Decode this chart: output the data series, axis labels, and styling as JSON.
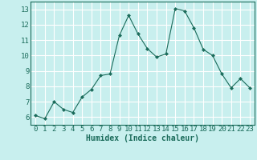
{
  "x": [
    0,
    1,
    2,
    3,
    4,
    5,
    6,
    7,
    8,
    9,
    10,
    11,
    12,
    13,
    14,
    15,
    16,
    17,
    18,
    19,
    20,
    21,
    22,
    23
  ],
  "y": [
    6.1,
    5.9,
    7.0,
    6.5,
    6.3,
    7.3,
    7.8,
    8.7,
    8.8,
    11.3,
    12.6,
    11.4,
    10.45,
    9.9,
    10.1,
    13.05,
    12.9,
    11.8,
    10.4,
    10.0,
    8.8,
    7.9,
    8.5,
    7.9
  ],
  "line_color": "#1a6b5a",
  "marker": "D",
  "marker_size": 2,
  "bg_color": "#c8efee",
  "grid_color": "#ffffff",
  "xlabel": "Humidex (Indice chaleur)",
  "ylim": [
    5.5,
    13.5
  ],
  "xlim": [
    -0.5,
    23.5
  ],
  "yticks": [
    6,
    7,
    8,
    9,
    10,
    11,
    12,
    13
  ],
  "xticks": [
    0,
    1,
    2,
    3,
    4,
    5,
    6,
    7,
    8,
    9,
    10,
    11,
    12,
    13,
    14,
    15,
    16,
    17,
    18,
    19,
    20,
    21,
    22,
    23
  ],
  "xlabel_color": "#1a6b5a",
  "tick_color": "#1a6b5a",
  "font_size": 6.5
}
